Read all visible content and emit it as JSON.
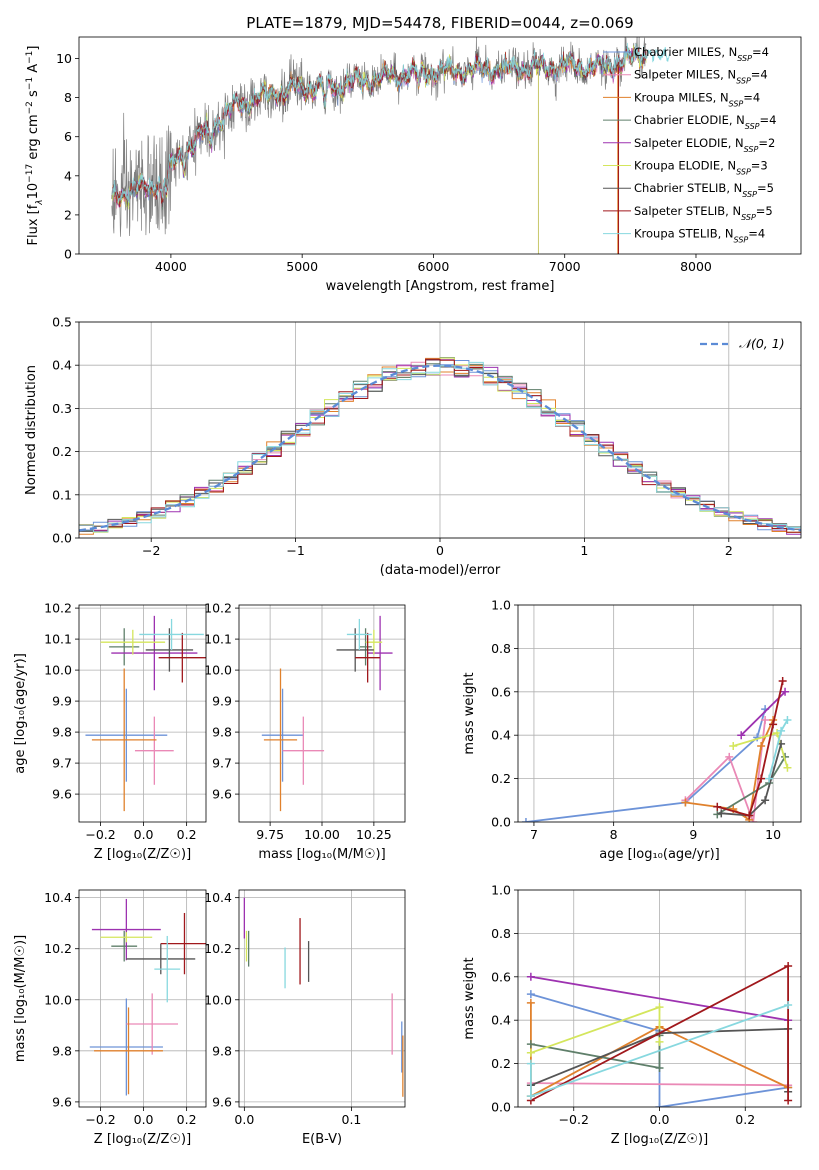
{
  "figure_title": "PLATE=1879, MJD=54478, FIBERID=0044, z=0.069",
  "colors": {
    "data_gray": "#808080",
    "models": [
      "#6d93d8",
      "#ea89b6",
      "#e0812c",
      "#5f7f6a",
      "#9d32b0",
      "#d4e65c",
      "#555555",
      "#a0181c",
      "#87d8df"
    ]
  },
  "legend_models": [
    {
      "label": "Chabrier MILES",
      "nssp": "4"
    },
    {
      "label": "Salpeter MILES",
      "nssp": "4"
    },
    {
      "label": "Kroupa MILES",
      "nssp": "4"
    },
    {
      "label": "Chabrier ELODIE",
      "nssp": "4"
    },
    {
      "label": "Salpeter ELODIE",
      "nssp": "2"
    },
    {
      "label": "Kroupa ELODIE",
      "nssp": "3"
    },
    {
      "label": "Chabrier STELIB",
      "nssp": "5"
    },
    {
      "label": "Salpeter STELIB",
      "nssp": "5"
    },
    {
      "label": "Kroupa STELIB",
      "nssp": "4"
    }
  ],
  "chart_data": [
    {
      "id": "spectrum",
      "type": "line",
      "title": "PLATE=1879, MJD=54478, FIBERID=0044, z=0.069",
      "xlabel": "wavelength [Angstrom, rest frame]",
      "ylabel_parts": [
        "Flux [f",
        "λ",
        "10",
        "−17",
        " erg cm",
        "−2",
        " s",
        "−1",
        " A",
        "−1",
        "]"
      ],
      "xlim": [
        3300,
        8800
      ],
      "ylim": [
        0,
        11.1
      ],
      "xticks": [
        4000,
        5000,
        6000,
        7000,
        8000
      ],
      "yticks": [
        0,
        2,
        4,
        6,
        8,
        10
      ],
      "grid": false,
      "legend": "right",
      "data_wavelength_range": [
        3550,
        7620
      ],
      "model_wavelength_range": [
        3550,
        7620
      ],
      "extra_model_tail": [
        7620,
        7800
      ],
      "flux_envelope": {
        "x": [
          3550,
          3700,
          3850,
          3950,
          4100,
          4300,
          4500,
          4800,
          5000,
          5200,
          5500,
          5800,
          6000,
          6300,
          6600,
          7000,
          7300,
          7600
        ],
        "y": [
          2.7,
          3.3,
          3.3,
          4.0,
          5.2,
          6.5,
          7.6,
          8.3,
          8.5,
          8.6,
          8.9,
          9.2,
          9.3,
          9.4,
          9.5,
          9.6,
          9.5,
          10.2
        ]
      }
    },
    {
      "id": "residuals",
      "type": "histogram",
      "xlabel": "(data-model)/error",
      "ylabel": "Normed distribution",
      "xlim": [
        -2.5,
        2.5
      ],
      "ylim": [
        0,
        0.5
      ],
      "xticks": [
        -2,
        -1,
        0,
        1,
        2
      ],
      "xtick_labels": [
        "−2",
        "−1",
        "0",
        "1",
        "2"
      ],
      "yticks": [
        0.0,
        0.1,
        0.2,
        0.3,
        0.4,
        0.5
      ],
      "ytick_labels": [
        "0.0",
        "0.1",
        "0.2",
        "0.3",
        "0.4",
        "0.5"
      ],
      "grid": true,
      "legend": "top-right",
      "reference_label": "𝒩(0, 1)",
      "reference_color": "#5b8bd6"
    },
    {
      "id": "age-vs-Z",
      "type": "scatter",
      "xlabel": "Z [log₁₀(Z/Z☉)]",
      "ylabel": "age  [log₁₀(age/yr)]",
      "xlim": [
        -0.3,
        0.29
      ],
      "ylim": [
        9.51,
        10.21
      ],
      "xticks": [
        -0.2,
        0.0,
        0.2
      ],
      "xtick_labels": [
        "−0.2",
        "0.0",
        "0.2"
      ],
      "yticks": [
        9.6,
        9.7,
        9.8,
        9.9,
        10.0,
        10.1,
        10.2
      ],
      "ytick_labels": [
        "9.6",
        "9.7",
        "9.8",
        "9.9",
        "10.0",
        "10.1",
        "10.2"
      ],
      "points": [
        {
          "x": -0.08,
          "y": 9.79,
          "xerr": 0.19,
          "yerr": 0.15,
          "c": 0
        },
        {
          "x": 0.05,
          "y": 9.74,
          "xerr": 0.09,
          "yerr": 0.11,
          "c": 1
        },
        {
          "x": -0.09,
          "y": 9.775,
          "xerr": 0.15,
          "yerr": 0.23,
          "c": 2
        },
        {
          "x": -0.09,
          "y": 10.075,
          "xerr": 0.07,
          "yerr": 0.06,
          "c": 3
        },
        {
          "x": 0.05,
          "y": 10.055,
          "xerr": 0.2,
          "yerr": 0.12,
          "c": 4
        },
        {
          "x": -0.05,
          "y": 10.09,
          "xerr": 0.15,
          "yerr": 0.04,
          "c": 5
        },
        {
          "x": 0.12,
          "y": 10.065,
          "xerr": 0.11,
          "yerr": 0.07,
          "c": 6
        },
        {
          "x": 0.18,
          "y": 10.04,
          "xerr": 0.11,
          "yerr": 0.08,
          "c": 7
        },
        {
          "x": 0.13,
          "y": 10.115,
          "xerr": 0.15,
          "yerr": 0.05,
          "c": 8
        }
      ]
    },
    {
      "id": "age-vs-mass",
      "type": "scatter",
      "xlabel": "mass [log₁₀(M/M☉)]",
      "ylabel": "",
      "xlim": [
        9.6,
        10.4
      ],
      "ylim": [
        9.51,
        10.21
      ],
      "xticks": [
        9.75,
        10.0,
        10.25
      ],
      "xtick_labels": [
        "9.75",
        "10.00",
        "10.25"
      ],
      "yticks": [
        9.6,
        9.7,
        9.8,
        9.9,
        10.0,
        10.1,
        10.2
      ],
      "ytick_labels": [
        "9.6",
        "9.7",
        "9.8",
        "9.9",
        "10.0",
        "10.1",
        "10.2"
      ],
      "points": [
        {
          "x": 9.81,
          "y": 9.79,
          "xerr": 0.1,
          "yerr": 0.15,
          "c": 0
        },
        {
          "x": 9.91,
          "y": 9.74,
          "xerr": 0.1,
          "yerr": 0.11,
          "c": 1
        },
        {
          "x": 9.8,
          "y": 9.775,
          "xerr": 0.08,
          "yerr": 0.23,
          "c": 2
        },
        {
          "x": 10.21,
          "y": 10.075,
          "xerr": 0.03,
          "yerr": 0.06,
          "c": 3
        },
        {
          "x": 10.28,
          "y": 10.055,
          "xerr": 0.06,
          "yerr": 0.12,
          "c": 4
        },
        {
          "x": 10.25,
          "y": 10.09,
          "xerr": 0.04,
          "yerr": 0.04,
          "c": 5
        },
        {
          "x": 10.16,
          "y": 10.065,
          "xerr": 0.09,
          "yerr": 0.07,
          "c": 6
        },
        {
          "x": 10.22,
          "y": 10.04,
          "xerr": 0.06,
          "yerr": 0.08,
          "c": 7
        },
        {
          "x": 10.18,
          "y": 10.115,
          "xerr": 0.06,
          "yerr": 0.05,
          "c": 8
        }
      ]
    },
    {
      "id": "weight-vs-age",
      "type": "line",
      "xlabel": "age  [log₁₀(age/yr)]",
      "ylabel": "mass weight",
      "xlim": [
        6.8,
        10.35
      ],
      "ylim": [
        0,
        1.0
      ],
      "xticks": [
        7,
        8,
        9,
        10
      ],
      "xtick_labels": [
        "7",
        "8",
        "9",
        "10"
      ],
      "yticks": [
        0.0,
        0.2,
        0.4,
        0.6,
        0.8,
        1.0
      ],
      "ytick_labels": [
        "0.0",
        "0.2",
        "0.4",
        "0.6",
        "0.8",
        "1.0"
      ],
      "grid": true,
      "series": [
        {
          "c": 0,
          "x": [
            6.9,
            8.9,
            9.8,
            9.9
          ],
          "y": [
            0.0,
            0.09,
            0.39,
            0.52
          ]
        },
        {
          "c": 1,
          "x": [
            8.9,
            9.45,
            9.75,
            9.9
          ],
          "y": [
            0.1,
            0.3,
            0.0,
            0.47
          ]
        },
        {
          "c": 2,
          "x": [
            8.9,
            9.5,
            9.7,
            9.85,
            10.0
          ],
          "y": [
            0.09,
            0.06,
            0.01,
            0.35,
            0.47
          ]
        },
        {
          "c": 3,
          "x": [
            9.3,
            9.95,
            10.15
          ],
          "y": [
            0.035,
            0.18,
            0.3
          ]
        },
        {
          "c": 4,
          "x": [
            9.6,
            10.15
          ],
          "y": [
            0.4,
            0.6
          ]
        },
        {
          "c": 5,
          "x": [
            9.5,
            10.05,
            10.18
          ],
          "y": [
            0.35,
            0.41,
            0.25
          ]
        },
        {
          "c": 6,
          "x": [
            9.35,
            9.7,
            9.9,
            10.1
          ],
          "y": [
            0.04,
            0.03,
            0.1,
            0.36
          ]
        },
        {
          "c": 7,
          "x": [
            9.3,
            9.7,
            9.85,
            10.0,
            10.12
          ],
          "y": [
            0.07,
            0.03,
            0.2,
            0.45,
            0.65
          ]
        },
        {
          "c": 8,
          "x": [
            9.95,
            10.1,
            10.18
          ],
          "y": [
            0.2,
            0.42,
            0.47
          ]
        }
      ]
    },
    {
      "id": "mass-vs-Z",
      "type": "scatter",
      "xlabel": "Z [log₁₀(Z/Z☉)]",
      "ylabel": "mass [log₁₀(M/M☉)]",
      "xlim": [
        -0.3,
        0.29
      ],
      "ylim": [
        9.58,
        10.43
      ],
      "xticks": [
        -0.2,
        0.0,
        0.2
      ],
      "xtick_labels": [
        "−0.2",
        "0.0",
        "0.2"
      ],
      "yticks": [
        9.6,
        9.8,
        10.0,
        10.2,
        10.4
      ],
      "ytick_labels": [
        "9.6",
        "9.8",
        "10.0",
        "10.2",
        "10.4"
      ],
      "points": [
        {
          "x": -0.08,
          "y": 9.815,
          "xerr": 0.17,
          "yerr": 0.19,
          "c": 0
        },
        {
          "x": 0.04,
          "y": 9.905,
          "xerr": 0.12,
          "yerr": 0.12,
          "c": 1
        },
        {
          "x": -0.07,
          "y": 9.8,
          "xerr": 0.16,
          "yerr": 0.17,
          "c": 2
        },
        {
          "x": -0.09,
          "y": 10.21,
          "xerr": 0.06,
          "yerr": 0.06,
          "c": 3
        },
        {
          "x": -0.08,
          "y": 10.275,
          "xerr": 0.16,
          "yerr": 0.12,
          "c": 4
        },
        {
          "x": -0.08,
          "y": 10.245,
          "xerr": 0.12,
          "yerr": 0.02,
          "c": 5
        },
        {
          "x": 0.08,
          "y": 10.16,
          "xerr": 0.16,
          "yerr": 0.06,
          "c": 6
        },
        {
          "x": 0.19,
          "y": 10.22,
          "xerr": 0.11,
          "yerr": 0.12,
          "c": 7
        },
        {
          "x": 0.11,
          "y": 10.12,
          "xerr": 0.06,
          "yerr": 0.13,
          "c": 8
        }
      ]
    },
    {
      "id": "mass-vs-ebv",
      "type": "scatter",
      "xlabel": "E(B-V)",
      "ylabel": "",
      "xlim": [
        -0.005,
        0.15
      ],
      "ylim": [
        9.58,
        10.43
      ],
      "xticks": [
        0.0,
        0.1
      ],
      "xtick_labels": [
        "0.0",
        "0.1"
      ],
      "yticks": [
        9.6,
        9.8,
        10.0,
        10.2,
        10.4
      ],
      "ytick_labels": [
        "9.6",
        "9.8",
        "10.0",
        "10.2",
        "10.4"
      ],
      "points": [
        {
          "x": 0.147,
          "y": 9.815,
          "xerr": 0,
          "yerr": 0.1,
          "c": 0
        },
        {
          "x": 0.138,
          "y": 9.905,
          "xerr": 0,
          "yerr": 0.12,
          "c": 1
        },
        {
          "x": 0.148,
          "y": 9.74,
          "xerr": 0,
          "yerr": 0.12,
          "c": 2
        },
        {
          "x": 0.004,
          "y": 10.2,
          "xerr": 0,
          "yerr": 0.07,
          "c": 3
        },
        {
          "x": 0.0,
          "y": 10.32,
          "xerr": 0,
          "yerr": 0.08,
          "c": 4
        },
        {
          "x": 0.002,
          "y": 10.21,
          "xerr": 0,
          "yerr": 0.06,
          "c": 5
        },
        {
          "x": 0.06,
          "y": 10.15,
          "xerr": 0,
          "yerr": 0.08,
          "c": 6
        },
        {
          "x": 0.052,
          "y": 10.19,
          "xerr": 0,
          "yerr": 0.13,
          "c": 7
        },
        {
          "x": 0.038,
          "y": 10.125,
          "xerr": 0,
          "yerr": 0.08,
          "c": 8
        }
      ]
    },
    {
      "id": "weight-vs-Z",
      "type": "line",
      "xlabel": "Z [log₁₀(Z/Z☉)]",
      "ylabel": "mass weight",
      "xlim": [
        -0.33,
        0.33
      ],
      "ylim": [
        0,
        1.0
      ],
      "xticks": [
        -0.2,
        0.0,
        0.2
      ],
      "xtick_labels": [
        "−0.2",
        "0.0",
        "0.2"
      ],
      "yticks": [
        0.0,
        0.2,
        0.4,
        0.6,
        0.8,
        1.0
      ],
      "ytick_labels": [
        "0.0",
        "0.2",
        "0.4",
        "0.6",
        "0.8",
        "1.0"
      ],
      "grid": true,
      "series": [
        {
          "c": 0,
          "x": [
            -0.3,
            0.0,
            0.0,
            0.3
          ],
          "y": [
            0.52,
            0.35,
            0.0,
            0.09
          ]
        },
        {
          "c": 1,
          "x": [
            -0.3,
            0.3
          ],
          "y": [
            0.11,
            0.1
          ]
        },
        {
          "c": 2,
          "x": [
            -0.3,
            -0.3,
            0.0,
            0.3
          ],
          "y": [
            0.48,
            0.05,
            0.37,
            0.09
          ]
        },
        {
          "c": 3,
          "x": [
            -0.3,
            0.0,
            0.0
          ],
          "y": [
            0.29,
            0.18,
            0.33
          ]
        },
        {
          "c": 4,
          "x": [
            -0.3,
            0.3
          ],
          "y": [
            0.6,
            0.4
          ]
        },
        {
          "c": 5,
          "x": [
            -0.3,
            0.0,
            0.0
          ],
          "y": [
            0.25,
            0.46,
            0.3
          ]
        },
        {
          "c": 6,
          "x": [
            -0.3,
            0.0,
            0.3,
            0.3
          ],
          "y": [
            0.1,
            0.34,
            0.36,
            0.07
          ]
        },
        {
          "c": 7,
          "x": [
            -0.3,
            0.3,
            0.3
          ],
          "y": [
            0.03,
            0.65,
            0.03
          ]
        },
        {
          "c": 8,
          "x": [
            -0.3,
            -0.3,
            0.3
          ],
          "y": [
            0.2,
            0.05,
            0.47
          ]
        }
      ]
    }
  ]
}
